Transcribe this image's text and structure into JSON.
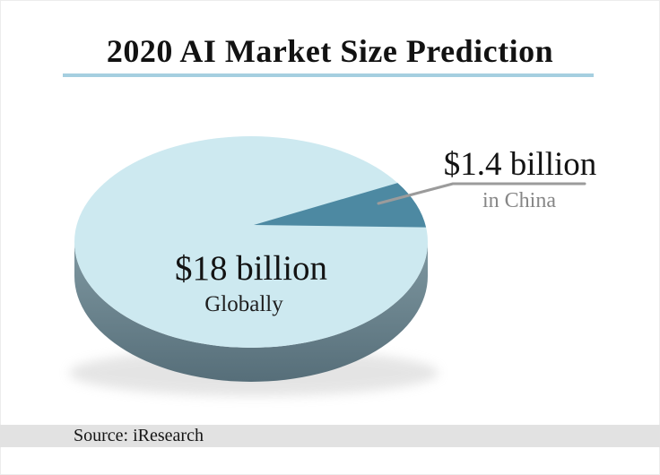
{
  "chart_data": {
    "type": "pie",
    "style": "3d-pie",
    "title": "2020 AI Market Size Prediction",
    "unit": "USD billions",
    "legend_position": "on-chart-callouts",
    "slices": [
      {
        "label": "Globally",
        "value_label": "$18 billion",
        "value": 18,
        "color": "#cde9f0"
      },
      {
        "label": "in China",
        "value_label": "$1.4 billion",
        "value": 1.4,
        "color": "#4d89a2"
      }
    ],
    "source": "Source: iResearch"
  },
  "colors": {
    "title_text": "#121212",
    "title_underline": "#a5cfe0",
    "leader_line": "#9b9b9b",
    "rim_top": "#7f98a1",
    "rim_bottom": "#566e79",
    "source_band": "#e2e2e2",
    "shadow": "#b5b5b5"
  }
}
